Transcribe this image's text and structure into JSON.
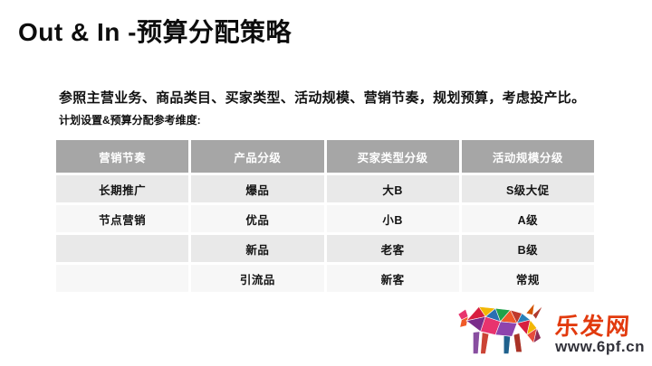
{
  "slide": {
    "title": "Out & In -预算分配策略",
    "subtitle": "参照主营业务、商品类目、买家类型、活动规模、营销节奏，规划预算，考虑投产比。",
    "table_caption": "计划设置&预算分配参考维度:",
    "table": {
      "headers": [
        "营销节奏",
        "产品分级",
        "买家类型分级",
        "活动规模分级"
      ],
      "rows": [
        [
          "长期推广",
          "爆品",
          "大B",
          "S级大促"
        ],
        [
          "节点营销",
          "优品",
          "小B",
          "A级"
        ],
        [
          "",
          "新品",
          "老客",
          "B级"
        ],
        [
          "",
          "引流品",
          "新客",
          "常规"
        ]
      ]
    },
    "colors": {
      "header_bg": "#a6a6a6",
      "header_text": "#ffffff",
      "row_odd_bg": "#e9e9e9",
      "row_even_bg": "#f7f7f7",
      "watermark_red": "#e23a0e",
      "watermark_dark": "#32323a"
    },
    "watermark": {
      "logo": "bull-logo-icon",
      "site_name": "乐发网",
      "site_url": "www.6pf.cn"
    }
  }
}
